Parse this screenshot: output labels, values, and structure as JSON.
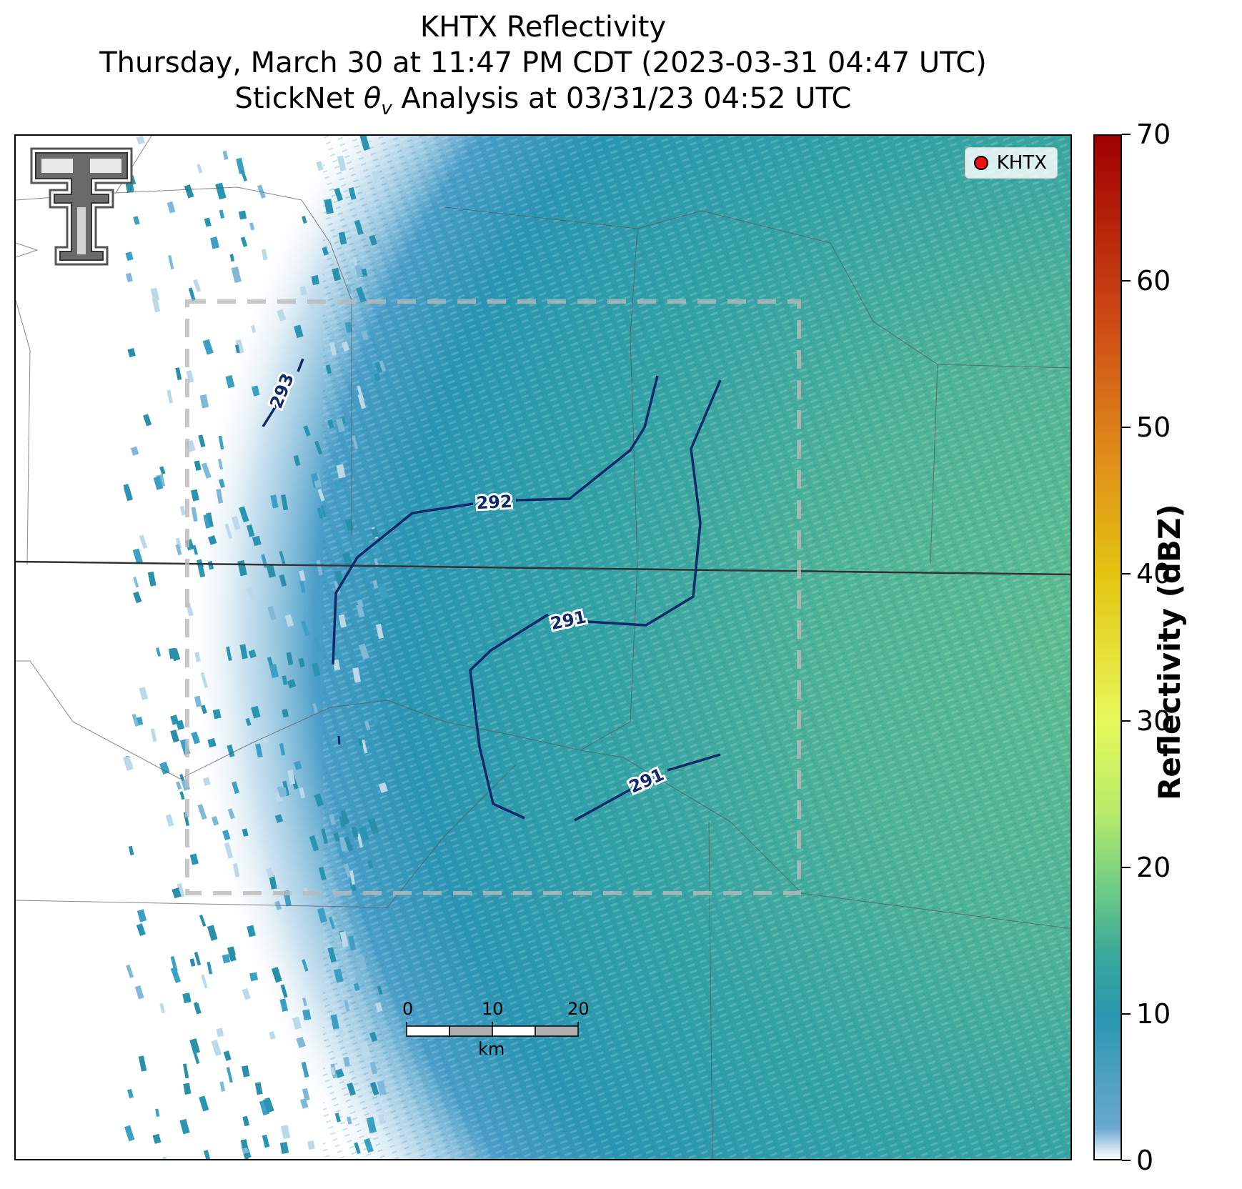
{
  "title": {
    "line1": "KHTX Reflectivity",
    "line2": "Thursday, March 30 at 11:47 PM CDT (2023-03-31 04:47 UTC)",
    "line3_pre": "StickNet ",
    "line3_symbol": "θ",
    "line3_sub": "v",
    "line3_post": " Analysis at 03/31/23 04:52 UTC"
  },
  "legend": {
    "label": "KHTX",
    "marker_color": "#ee1111"
  },
  "contours": [
    {
      "label": "293",
      "value": 293
    },
    {
      "label": "292",
      "value": 292
    },
    {
      "label": "291",
      "value": 291
    },
    {
      "label": "291",
      "value": 291
    }
  ],
  "contour_color": "#0f2a6b",
  "scalebar": {
    "labels": [
      "0",
      "10",
      "20"
    ],
    "unit": "km"
  },
  "colorbar": {
    "title": "Reflectivity (dBZ)",
    "ticks": [
      "0",
      "10",
      "20",
      "30",
      "40",
      "50",
      "60",
      "70"
    ],
    "min": 0,
    "max": 70
  },
  "logo": {
    "name": "texas-tech-double-t-logo"
  }
}
